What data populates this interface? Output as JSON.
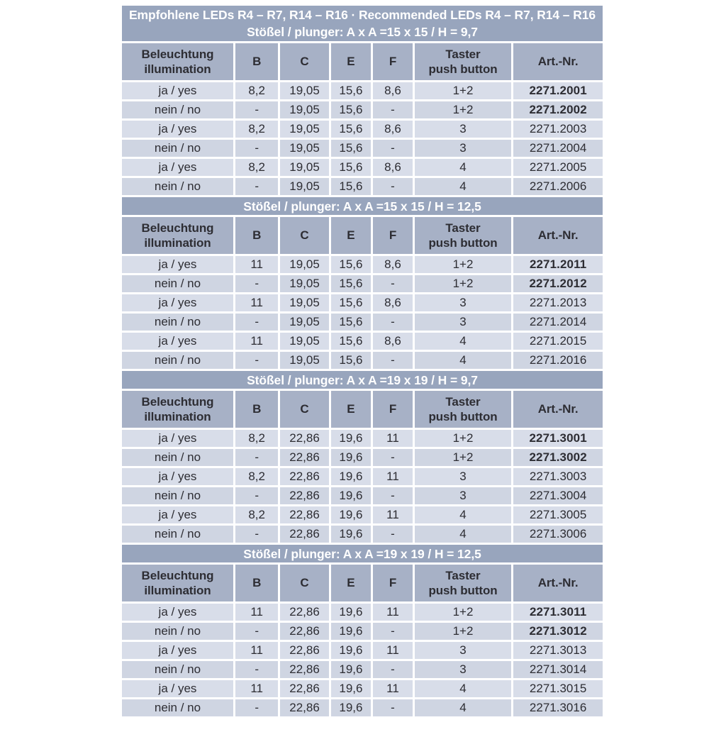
{
  "colors": {
    "page_bg": "#ffffff",
    "band_bg": "#98a5bd",
    "header_bg": "#a7b1c6",
    "row_light_bg": "#d8dde9",
    "row_dark_bg": "#cfd5e2",
    "band_text": "#ffffff",
    "body_text": "#2d2d33"
  },
  "header": {
    "title": "Empfohlene LEDs R4 – R7, R14 – R16 · Recommended LEDs R4 – R7, R14 – R16"
  },
  "columns": [
    {
      "key": "illumination",
      "label": "Beleuchtung\nillumination"
    },
    {
      "key": "b",
      "label": "B"
    },
    {
      "key": "c",
      "label": "C"
    },
    {
      "key": "e",
      "label": "E"
    },
    {
      "key": "f",
      "label": "F"
    },
    {
      "key": "push-button",
      "label": "Taster\npush button"
    },
    {
      "key": "art-nr",
      "label": "Art.-Nr."
    }
  ],
  "sections": [
    {
      "subtitle": "Stößel / plunger: A x A =15 x 15 / H = 9,7",
      "rows": [
        {
          "cells": [
            "ja / yes",
            "8,2",
            "19,05",
            "15,6",
            "8,6",
            "1+2",
            "2271.2001"
          ],
          "art_bold": true
        },
        {
          "cells": [
            "nein / no",
            "-",
            "19,05",
            "15,6",
            "-",
            "1+2",
            "2271.2002"
          ],
          "art_bold": true
        },
        {
          "cells": [
            "ja / yes",
            "8,2",
            "19,05",
            "15,6",
            "8,6",
            "3",
            "2271.2003"
          ],
          "art_bold": false
        },
        {
          "cells": [
            "nein / no",
            "-",
            "19,05",
            "15,6",
            "-",
            "3",
            "2271.2004"
          ],
          "art_bold": false
        },
        {
          "cells": [
            "ja / yes",
            "8,2",
            "19,05",
            "15,6",
            "8,6",
            "4",
            "2271.2005"
          ],
          "art_bold": false
        },
        {
          "cells": [
            "nein / no",
            "-",
            "19,05",
            "15,6",
            "-",
            "4",
            "2271.2006"
          ],
          "art_bold": false
        }
      ]
    },
    {
      "subtitle": "Stößel / plunger: A x A =15 x 15 / H = 12,5",
      "rows": [
        {
          "cells": [
            "ja / yes",
            "11",
            "19,05",
            "15,6",
            "8,6",
            "1+2",
            "2271.2011"
          ],
          "art_bold": true
        },
        {
          "cells": [
            "nein / no",
            "-",
            "19,05",
            "15,6",
            "-",
            "1+2",
            "2271.2012"
          ],
          "art_bold": true
        },
        {
          "cells": [
            "ja / yes",
            "11",
            "19,05",
            "15,6",
            "8,6",
            "3",
            "2271.2013"
          ],
          "art_bold": false
        },
        {
          "cells": [
            "nein / no",
            "-",
            "19,05",
            "15,6",
            "-",
            "3",
            "2271.2014"
          ],
          "art_bold": false
        },
        {
          "cells": [
            "ja / yes",
            "11",
            "19,05",
            "15,6",
            "8,6",
            "4",
            "2271.2015"
          ],
          "art_bold": false
        },
        {
          "cells": [
            "nein / no",
            "-",
            "19,05",
            "15,6",
            "-",
            "4",
            "2271.2016"
          ],
          "art_bold": false
        }
      ]
    },
    {
      "subtitle": "Stößel / plunger: A x A =19 x 19 / H = 9,7",
      "rows": [
        {
          "cells": [
            "ja / yes",
            "8,2",
            "22,86",
            "19,6",
            "11",
            "1+2",
            "2271.3001"
          ],
          "art_bold": true
        },
        {
          "cells": [
            "nein / no",
            "-",
            "22,86",
            "19,6",
            "-",
            "1+2",
            "2271.3002"
          ],
          "art_bold": true
        },
        {
          "cells": [
            "ja / yes",
            "8,2",
            "22,86",
            "19,6",
            "11",
            "3",
            "2271.3003"
          ],
          "art_bold": false
        },
        {
          "cells": [
            "nein / no",
            "-",
            "22,86",
            "19,6",
            "-",
            "3",
            "2271.3004"
          ],
          "art_bold": false
        },
        {
          "cells": [
            "ja / yes",
            "8,2",
            "22,86",
            "19,6",
            "11",
            "4",
            "2271.3005"
          ],
          "art_bold": false
        },
        {
          "cells": [
            "nein / no",
            "-",
            "22,86",
            "19,6",
            "-",
            "4",
            "2271.3006"
          ],
          "art_bold": false
        }
      ]
    },
    {
      "subtitle": "Stößel / plunger: A x A =19 x 19 / H = 12,5",
      "rows": [
        {
          "cells": [
            "ja / yes",
            "11",
            "22,86",
            "19,6",
            "11",
            "1+2",
            "2271.3011"
          ],
          "art_bold": true
        },
        {
          "cells": [
            "nein / no",
            "-",
            "22,86",
            "19,6",
            "-",
            "1+2",
            "2271.3012"
          ],
          "art_bold": true
        },
        {
          "cells": [
            "ja / yes",
            "11",
            "22,86",
            "19,6",
            "11",
            "3",
            "2271.3013"
          ],
          "art_bold": false
        },
        {
          "cells": [
            "nein / no",
            "-",
            "22,86",
            "19,6",
            "-",
            "3",
            "2271.3014"
          ],
          "art_bold": false
        },
        {
          "cells": [
            "ja / yes",
            "11",
            "22,86",
            "19,6",
            "11",
            "4",
            "2271.3015"
          ],
          "art_bold": false
        },
        {
          "cells": [
            "nein / no",
            "-",
            "22,86",
            "19,6",
            "-",
            "4",
            "2271.3016"
          ],
          "art_bold": false
        }
      ]
    }
  ]
}
